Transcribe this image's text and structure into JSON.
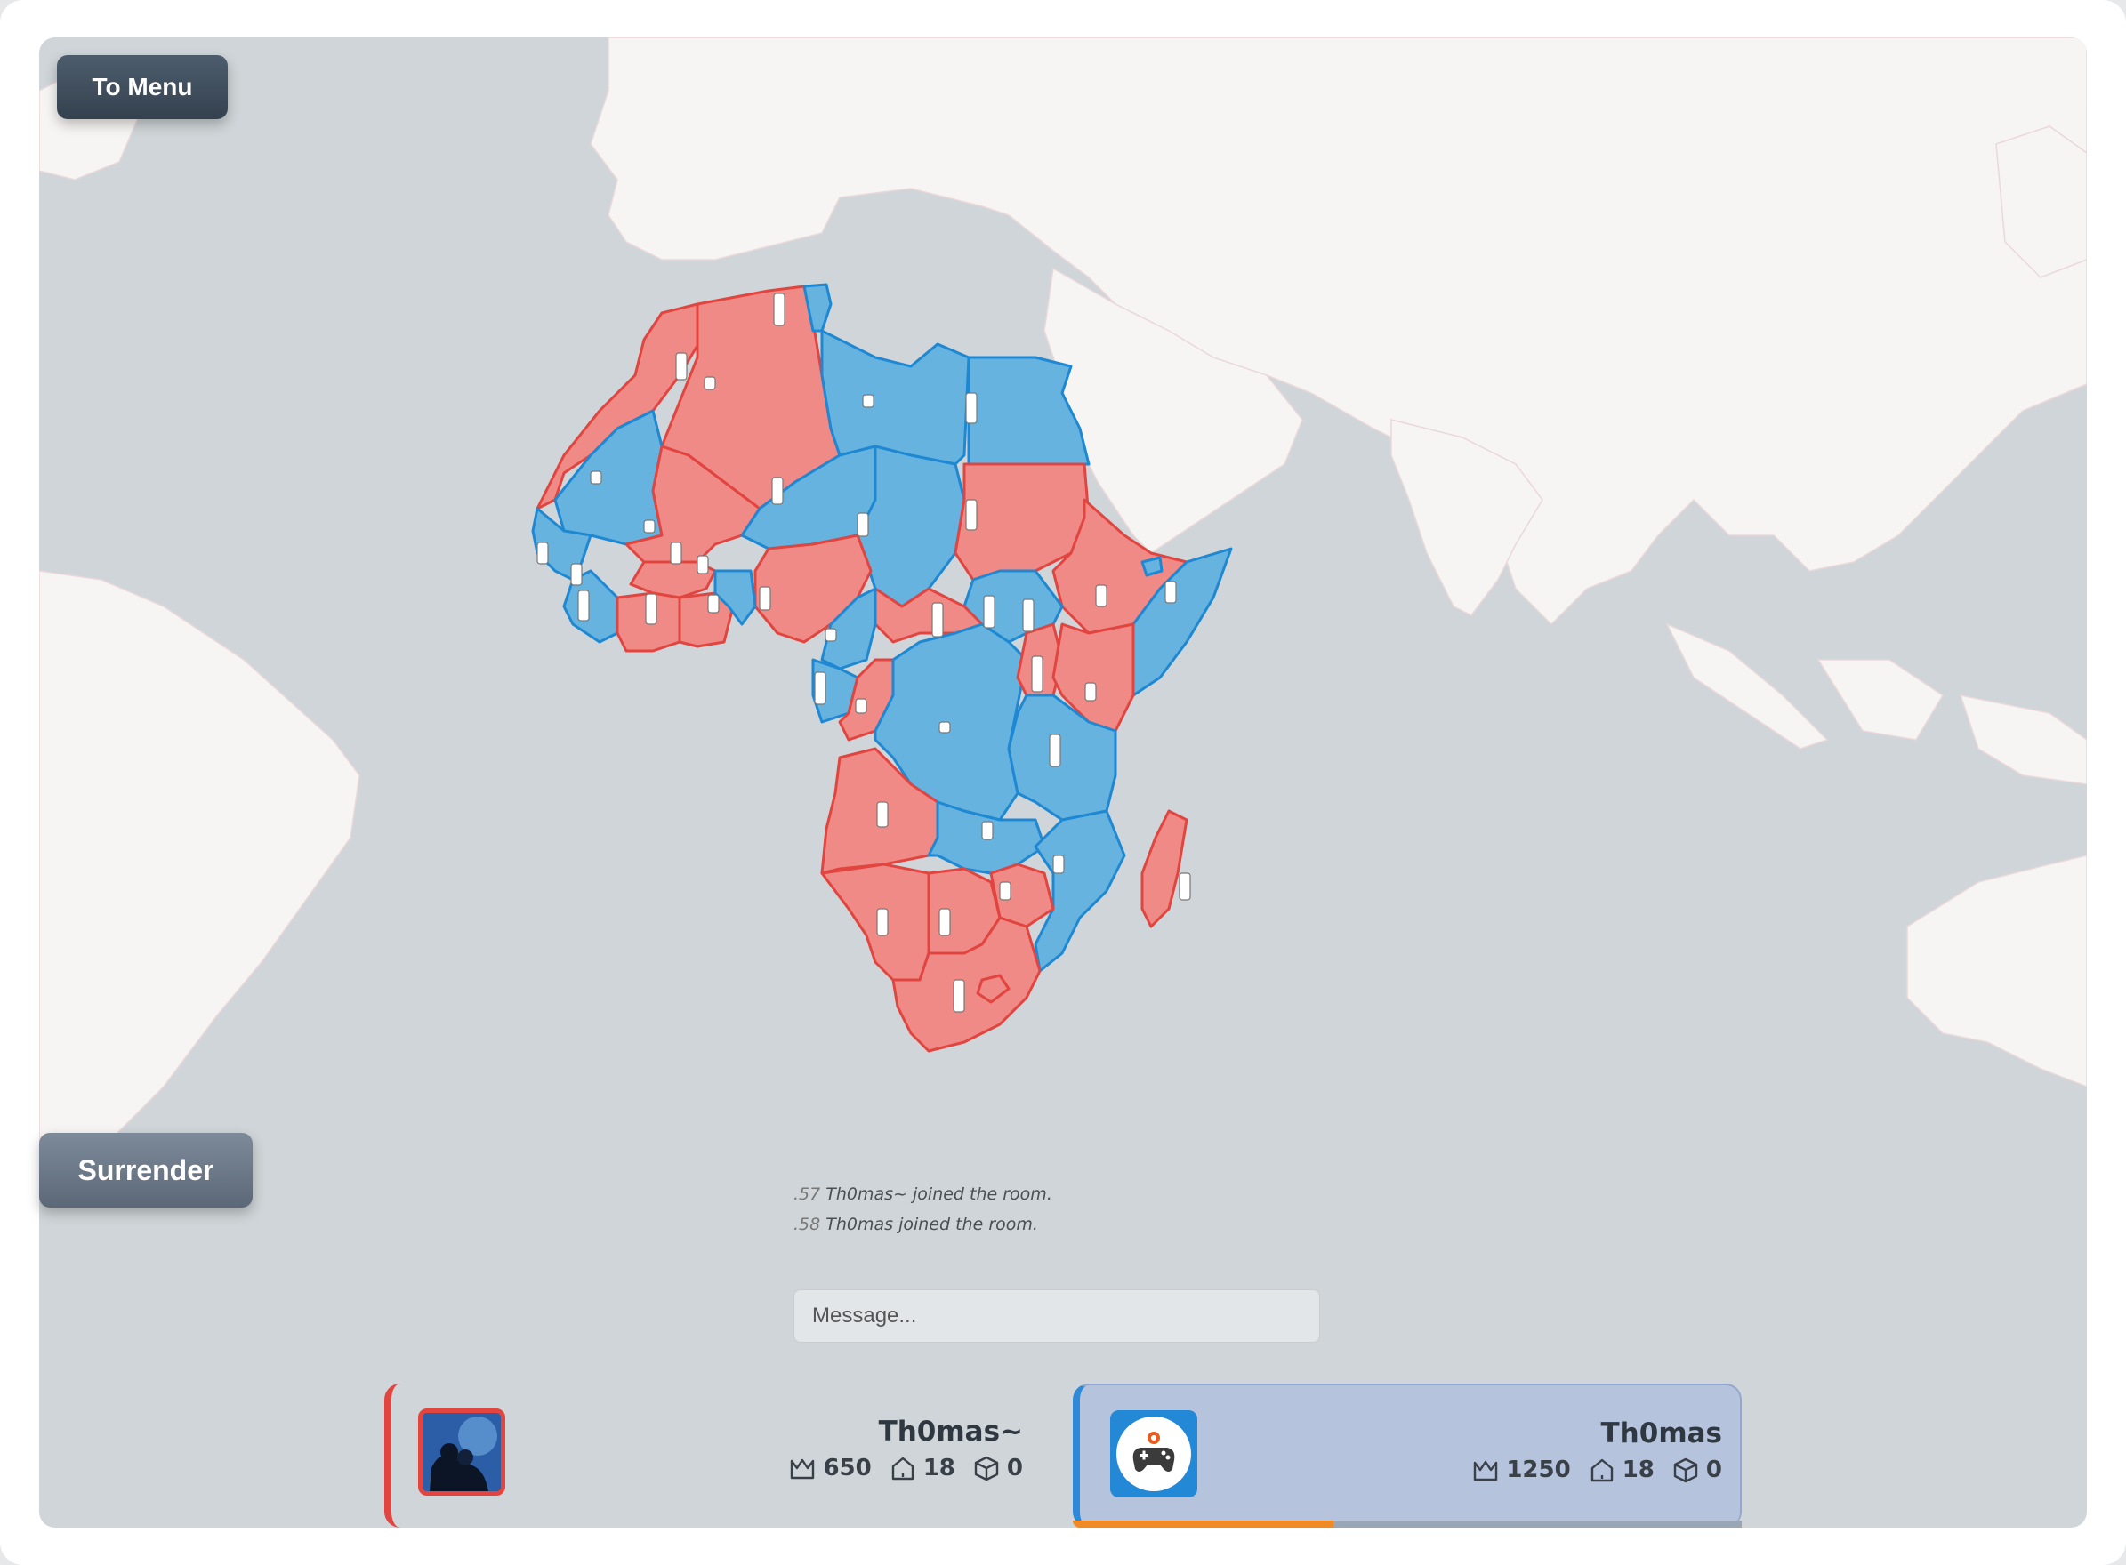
{
  "buttons": {
    "to_menu": "To Menu",
    "surrender": "Surrender"
  },
  "chat": {
    "messages": [
      {
        "time": ".57",
        "text": "Th0mas~ joined the room."
      },
      {
        "time": ".58",
        "text": "Th0mas joined the room."
      }
    ],
    "placeholder": "Message..."
  },
  "players": [
    {
      "name": "Th0mas~",
      "crowns": "650",
      "territories": "18",
      "dice": "0",
      "color": "#e2453f",
      "avatar": "photo-avatar"
    },
    {
      "name": "Th0mas",
      "crowns": "1250",
      "territories": "18",
      "dice": "0",
      "color": "#2e8ad8",
      "avatar": "gamepad-icon",
      "active": true,
      "turn_progress": 0.39
    }
  ],
  "map": {
    "region": "Africa",
    "colors": {
      "red_team": "#ef8a87",
      "red_border": "#e2453f",
      "blue_team": "#66b3df",
      "blue_border": "#1f88d2",
      "ocean": "#cfd5d8",
      "land": "#f5f5f4"
    }
  }
}
